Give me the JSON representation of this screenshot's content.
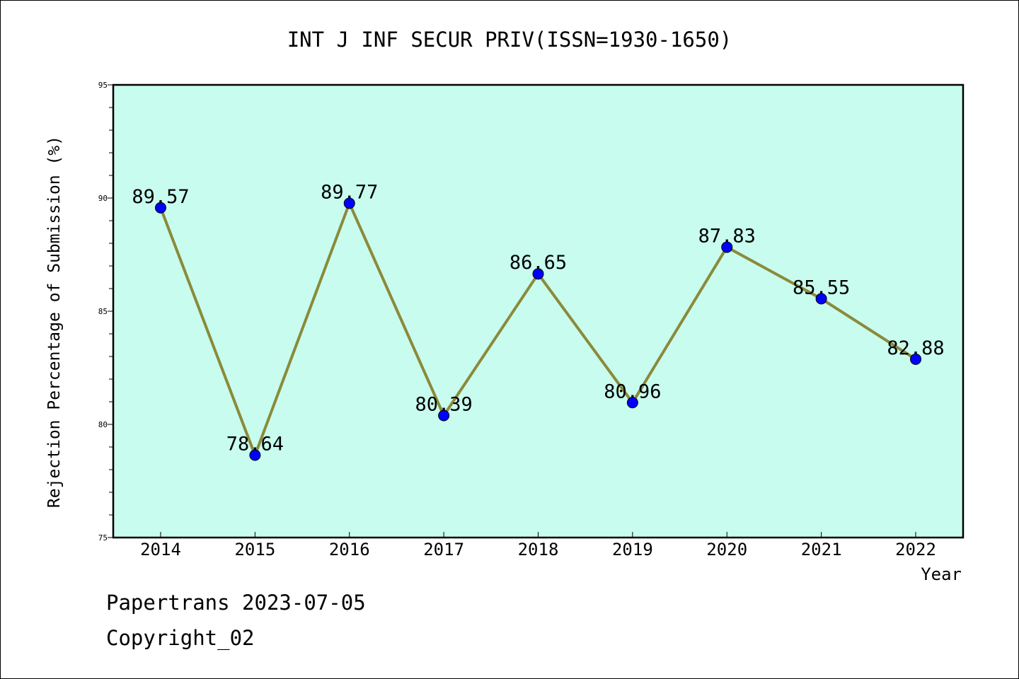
{
  "chart_data": {
    "type": "line",
    "title": "INT J INF SECUR PRIV(ISSN=1930-1650)",
    "xlabel": "Year",
    "ylabel": "Rejection Percentage of Submission (%)",
    "categories": [
      "2014",
      "2015",
      "2016",
      "2017",
      "2018",
      "2019",
      "2020",
      "2021",
      "2022"
    ],
    "values": [
      89.57,
      78.64,
      89.77,
      80.39,
      86.65,
      80.96,
      87.83,
      85.55,
      82.88
    ],
    "data_labels": [
      "89.57",
      "78.64",
      "89.77",
      "80.39",
      "86.65",
      "80.96",
      "87.83",
      "85.55",
      "82.88"
    ],
    "ylim": [
      75,
      95
    ],
    "yticks": [
      "75",
      "80",
      "85",
      "90",
      "95"
    ],
    "grid": false,
    "colors": {
      "plot_background": "#c8fcee",
      "line": "#8b8a3a",
      "marker": "#0000ff"
    }
  },
  "footer": {
    "line1": "Papertrans 2023-07-05",
    "line2": "Copyright_02"
  }
}
